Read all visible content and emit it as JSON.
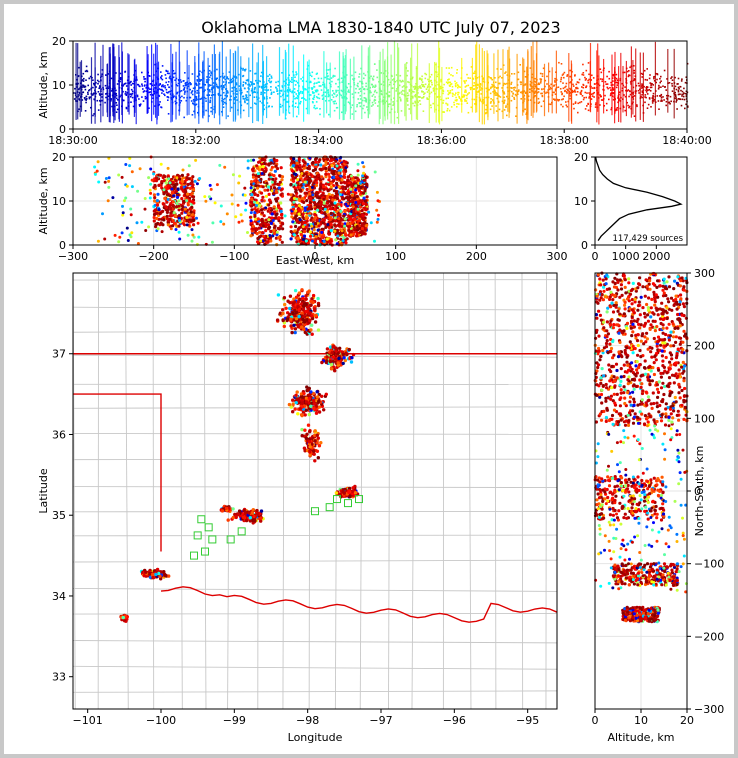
{
  "figure": {
    "title": "Oklahoma LMA 1830-1840 UTC July 07, 2023"
  },
  "chart_data": [
    {
      "id": "time-altitude",
      "type": "scatter",
      "ylabel": "Altitude, km",
      "xlim": [
        "18:30:00",
        "18:40:00"
      ],
      "ylim": [
        0,
        20
      ],
      "x_ticks": [
        "18:30:00",
        "18:32:00",
        "18:34:00",
        "18:36:00",
        "18:38:00",
        "18:40:00"
      ],
      "y_ticks": [
        "0",
        "10",
        "20"
      ],
      "colormap": "jet",
      "color_encodes": "time",
      "grid": true
    },
    {
      "id": "ew-altitude",
      "type": "scatter",
      "xlabel": "East-West, km",
      "ylabel": "Altitude, km",
      "xlim": [
        -300,
        300
      ],
      "ylim": [
        0,
        20
      ],
      "x_ticks": [
        "−300",
        "−200",
        "−100",
        "0",
        "100",
        "200",
        "300"
      ],
      "y_ticks": [
        "0",
        "10",
        "20"
      ],
      "clusters": [
        {
          "x_range": [
            -200,
            -150
          ],
          "z_range": [
            4,
            16
          ]
        },
        {
          "x_range": [
            -80,
            -40
          ],
          "z_range": [
            0,
            20
          ]
        },
        {
          "x_range": [
            -30,
            40
          ],
          "z_range": [
            0,
            20
          ]
        },
        {
          "x_range": [
            40,
            65
          ],
          "z_range": [
            2,
            16
          ]
        }
      ],
      "grid": true
    },
    {
      "id": "altitude-histogram",
      "type": "line",
      "xlim": [
        0,
        3000
      ],
      "ylim": [
        0,
        20
      ],
      "x_ticks": [
        "0",
        "1000",
        "2000"
      ],
      "y_ticks": [
        "0",
        "10",
        "20"
      ],
      "annotation": "117,429 sources",
      "profile": [
        {
          "x": 100,
          "y": 1
        },
        {
          "x": 200,
          "y": 2
        },
        {
          "x": 350,
          "y": 3
        },
        {
          "x": 500,
          "y": 4
        },
        {
          "x": 650,
          "y": 5
        },
        {
          "x": 800,
          "y": 6
        },
        {
          "x": 1100,
          "y": 7
        },
        {
          "x": 1700,
          "y": 8
        },
        {
          "x": 2500,
          "y": 8.8
        },
        {
          "x": 2800,
          "y": 9.3
        },
        {
          "x": 2600,
          "y": 10
        },
        {
          "x": 2200,
          "y": 11
        },
        {
          "x": 1700,
          "y": 12
        },
        {
          "x": 1000,
          "y": 13
        },
        {
          "x": 600,
          "y": 14
        },
        {
          "x": 400,
          "y": 15
        },
        {
          "x": 250,
          "y": 16
        },
        {
          "x": 150,
          "y": 17
        },
        {
          "x": 100,
          "y": 18
        },
        {
          "x": 50,
          "y": 19
        },
        {
          "x": 20,
          "y": 20
        }
      ]
    },
    {
      "id": "plan-view",
      "type": "scatter",
      "xlabel": "Longitude",
      "ylabel": "Latitude",
      "xlim": [
        -101.2,
        -94.6
      ],
      "ylim": [
        32.6,
        38.0
      ],
      "x_ticks": [
        "−101",
        "−100",
        "−99",
        "−98",
        "−97",
        "−96",
        "−95"
      ],
      "y_ticks": [
        "33",
        "34",
        "35",
        "36",
        "37"
      ],
      "state_border_color": "#dd0000",
      "county_line_color": "#c8c8c8",
      "station_color": "#33cc33",
      "stations": [
        {
          "lon": -99.45,
          "lat": 34.95
        },
        {
          "lon": -99.35,
          "lat": 34.85
        },
        {
          "lon": -99.5,
          "lat": 34.75
        },
        {
          "lon": -99.3,
          "lat": 34.7
        },
        {
          "lon": -99.4,
          "lat": 34.55
        },
        {
          "lon": -99.55,
          "lat": 34.5
        },
        {
          "lon": -99.05,
          "lat": 34.7
        },
        {
          "lon": -98.9,
          "lat": 34.8
        },
        {
          "lon": -97.9,
          "lat": 35.05
        },
        {
          "lon": -97.7,
          "lat": 35.1
        },
        {
          "lon": -97.6,
          "lat": 35.2
        },
        {
          "lon": -97.45,
          "lat": 35.15
        },
        {
          "lon": -97.3,
          "lat": 35.2
        }
      ],
      "clusters": [
        {
          "lon": -98.1,
          "lat": 37.5,
          "spread_lon": 0.35,
          "spread_lat": 0.35,
          "n": 260
        },
        {
          "lon": -97.6,
          "lat": 36.95,
          "spread_lon": 0.25,
          "spread_lat": 0.2,
          "n": 160
        },
        {
          "lon": -98.0,
          "lat": 36.4,
          "spread_lon": 0.3,
          "spread_lat": 0.2,
          "n": 200
        },
        {
          "lon": -97.95,
          "lat": 35.9,
          "spread_lon": 0.15,
          "spread_lat": 0.3,
          "n": 90
        },
        {
          "lon": -97.45,
          "lat": 35.28,
          "spread_lon": 0.18,
          "spread_lat": 0.08,
          "n": 120
        },
        {
          "lon": -98.8,
          "lat": 35.0,
          "spread_lon": 0.3,
          "spread_lat": 0.1,
          "n": 150
        },
        {
          "lon": -99.1,
          "lat": 35.08,
          "spread_lon": 0.1,
          "spread_lat": 0.05,
          "n": 50
        },
        {
          "lon": -100.1,
          "lat": 34.27,
          "spread_lon": 0.25,
          "spread_lat": 0.07,
          "n": 130
        },
        {
          "lon": -100.5,
          "lat": 33.73,
          "spread_lon": 0.06,
          "spread_lat": 0.05,
          "n": 30
        }
      ]
    },
    {
      "id": "altitude-northsouth",
      "type": "scatter",
      "xlabel": "Altitude, km",
      "ylabel": "North-South, km",
      "xlim": [
        0,
        20
      ],
      "ylim": [
        -300,
        300
      ],
      "x_ticks": [
        "0",
        "10",
        "20"
      ],
      "y_ticks": [
        "−300",
        "−200",
        "−100",
        "0",
        "100",
        "200",
        "300"
      ],
      "clusters": [
        {
          "y_range": [
            90,
            300
          ],
          "z_range": [
            0,
            20
          ]
        },
        {
          "y_range": [
            -40,
            20
          ],
          "z_range": [
            0,
            15
          ]
        },
        {
          "y_range": [
            -130,
            -100
          ],
          "z_range": [
            4,
            18
          ]
        },
        {
          "y_range": [
            -180,
            -160
          ],
          "z_range": [
            6,
            14
          ]
        }
      ],
      "grid": true
    }
  ]
}
